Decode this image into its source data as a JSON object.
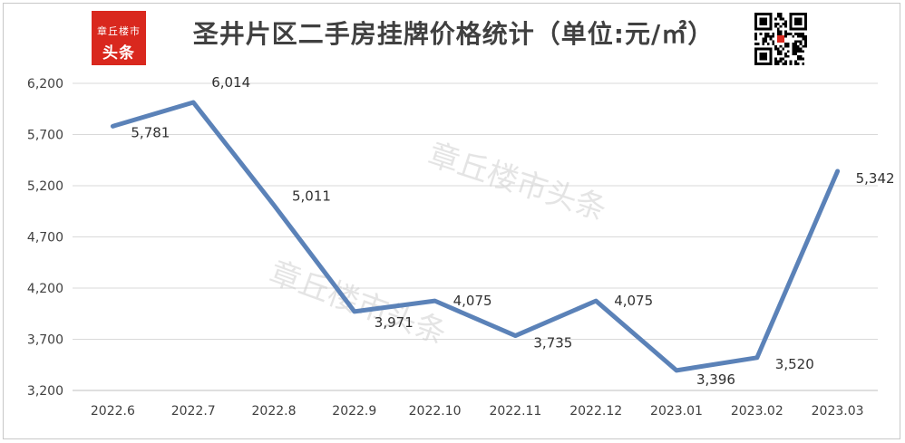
{
  "header": {
    "title": "圣井片区二手房挂牌价格统计（单位:元/㎡）",
    "logo_line1": "章丘楼市",
    "logo_line2": "头条"
  },
  "watermarks": [
    "章丘楼市头条",
    "章丘楼市头条"
  ],
  "colors": {
    "line": "#5b82b8",
    "grid": "#d9d9d9",
    "logo": "#d9281e"
  },
  "icons": {
    "qr": "qr-code-icon"
  },
  "chart_data": {
    "type": "line",
    "categories": [
      "2022.6",
      "2022.7",
      "2022.8",
      "2022.9",
      "2022.10",
      "2022.11",
      "2022.12",
      "2023.01",
      "2023.02",
      "2023.03"
    ],
    "series": [
      {
        "values": [
          5781,
          6014,
          5011,
          3971,
          4075,
          3735,
          4075,
          3396,
          3520,
          5342
        ]
      }
    ],
    "data_labels": [
      "5,781",
      "6,014",
      "5,011",
      "3,971",
      "4,075",
      "3,735",
      "4,075",
      "3,396",
      "3,520",
      "5,342"
    ],
    "y_ticks": [
      "3,200",
      "3,700",
      "4,200",
      "4,700",
      "5,200",
      "5,700",
      "6,200"
    ],
    "ylim": [
      3200,
      6200
    ],
    "grid": true,
    "legend": "none"
  }
}
